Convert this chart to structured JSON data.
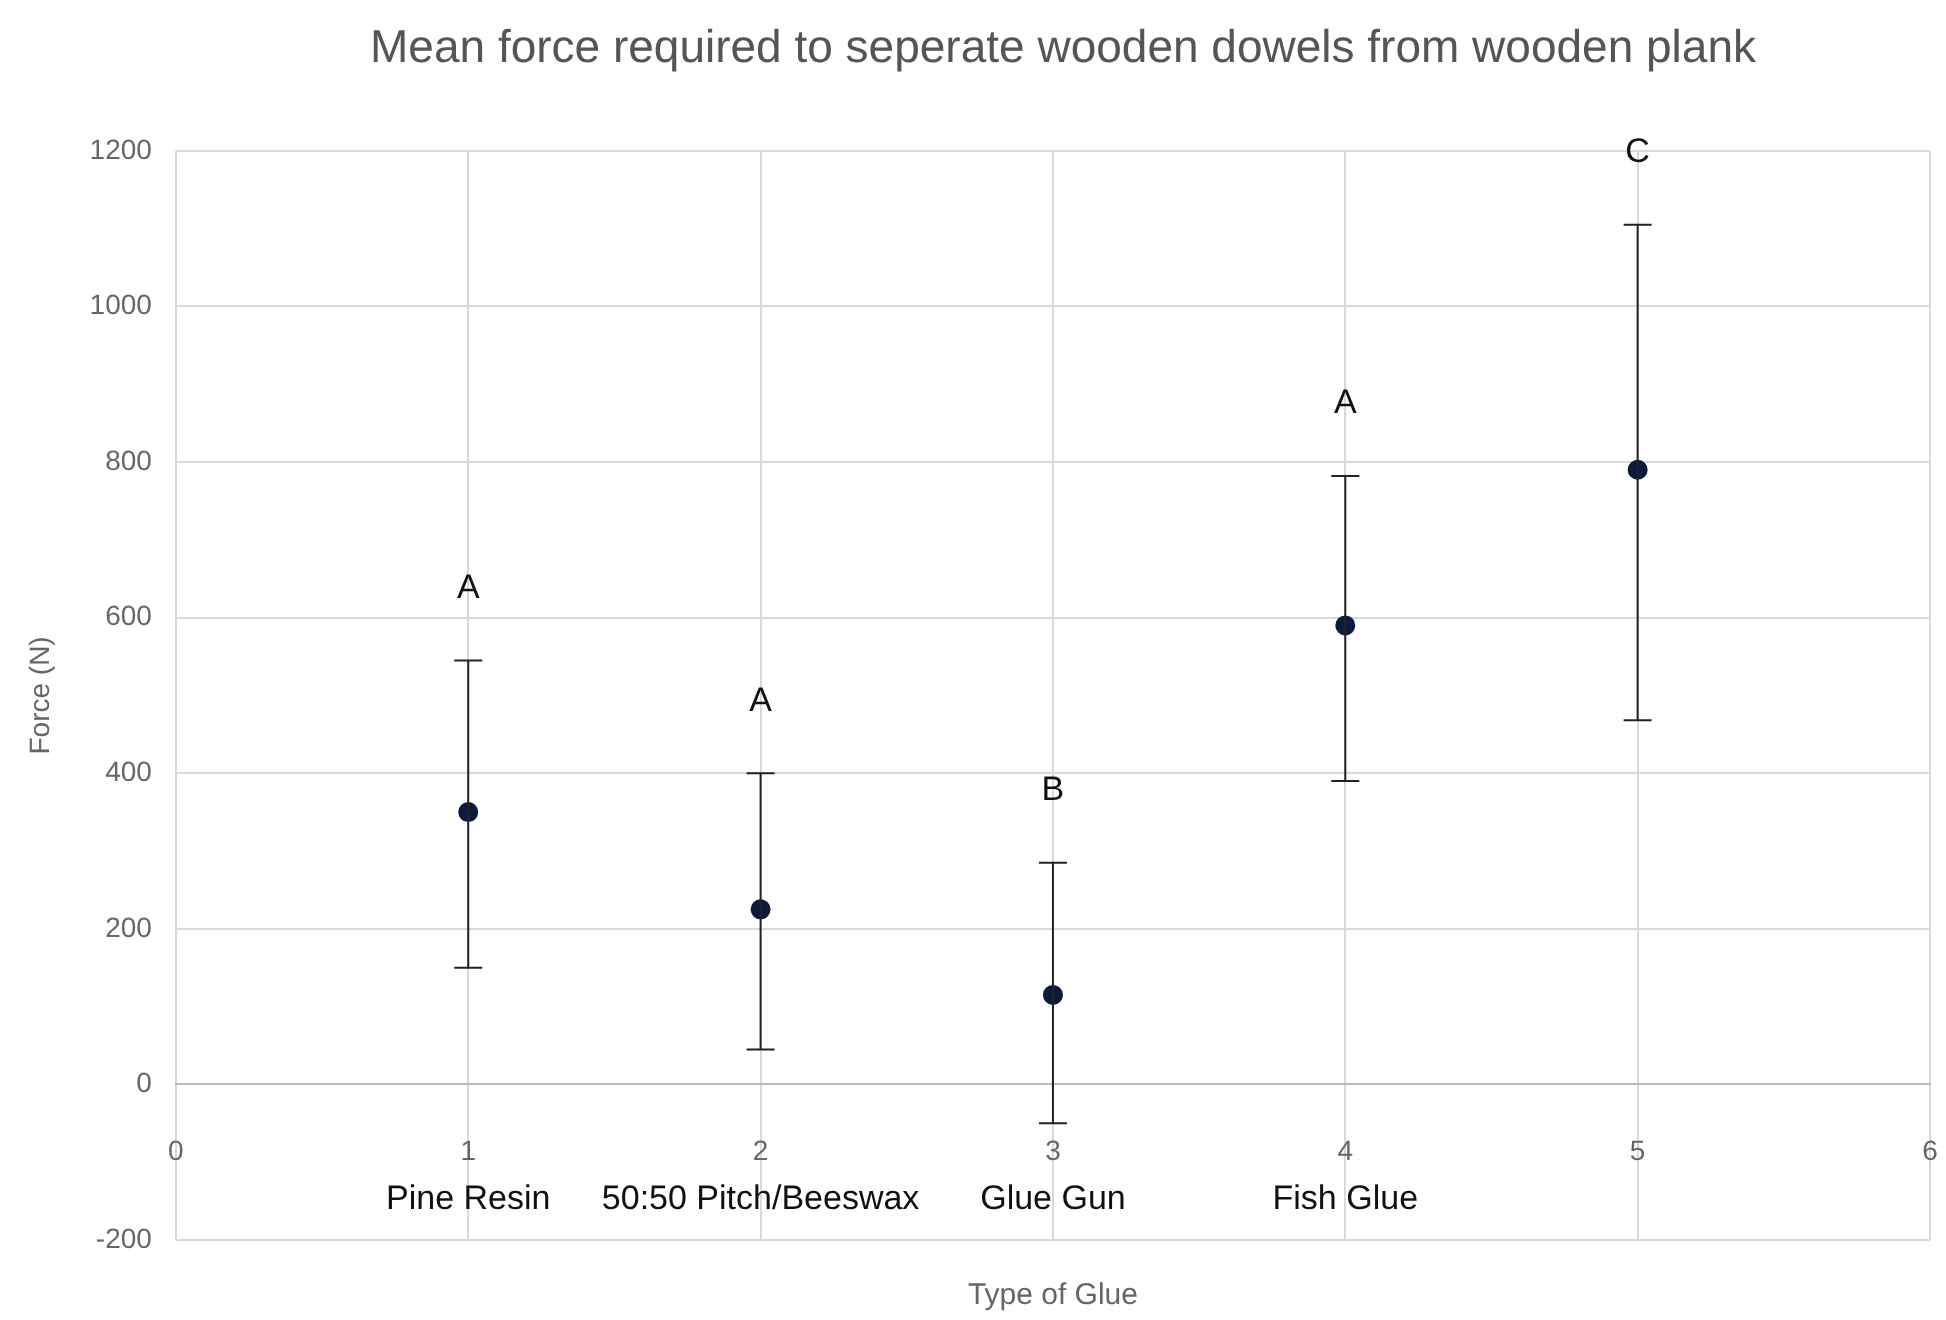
{
  "chart_data": {
    "type": "scatter",
    "title": "Mean force required to seperate wooden dowels from wooden plank",
    "xlabel": "Type of Glue",
    "ylabel": "Force (N)",
    "x": [
      1,
      2,
      3,
      4,
      5
    ],
    "values": [
      350,
      225,
      115,
      590,
      790
    ],
    "color": "#0b1a3d",
    "errors": [
      [
        150,
        545
      ],
      [
        45,
        400
      ],
      [
        -50,
        285
      ],
      [
        390,
        782
      ],
      [
        468,
        1105
      ]
    ],
    "xlim": [
      0,
      6
    ],
    "xticks": [
      0,
      1,
      2,
      3,
      4,
      5,
      6
    ],
    "ylim": [
      -200,
      1200
    ],
    "yticks": [
      -200,
      0,
      200,
      400,
      600,
      800,
      1000,
      1200
    ],
    "grid": true,
    "legend": false,
    "marker": "circle",
    "annotations": [
      "A",
      "A",
      "B",
      "A",
      "C",
      "Pine Resin",
      "50:50 Pitch/Beeswax",
      "Glue Gun",
      "Fish Glue"
    ]
  }
}
